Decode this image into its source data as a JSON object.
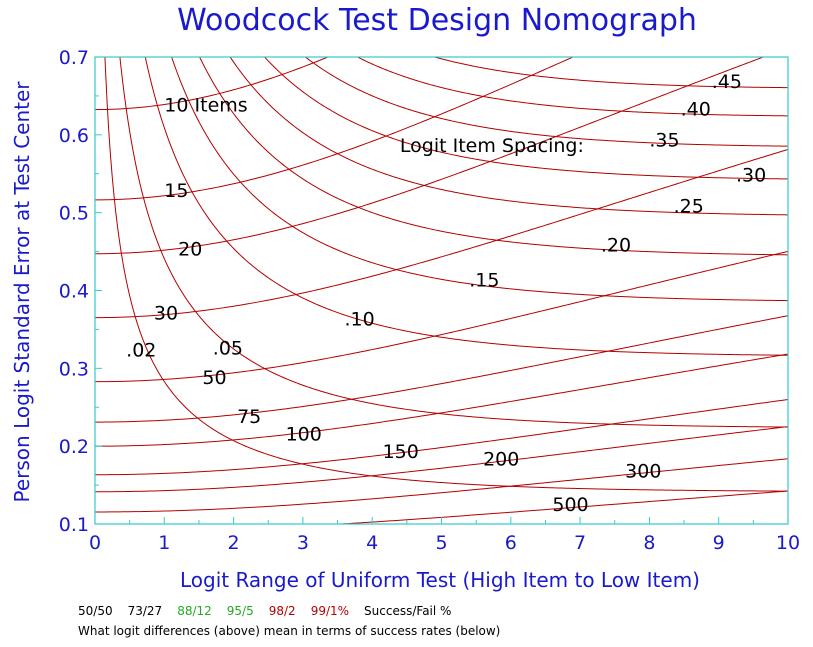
{
  "colors": {
    "frame": "#33cccc",
    "curves": "#b30000",
    "title": "#1a1acc",
    "labels": "#000000"
  },
  "chart_data": {
    "type": "line",
    "title": "Woodcock Test Design Nomograph",
    "xlabel": "Logit Range of Uniform Test (High Item to Low Item)",
    "ylabel": "Person Logit Standard Error at Test Center",
    "xlim": [
      0,
      10
    ],
    "ylim": [
      0.1,
      0.7
    ],
    "x_ticks": [
      "0",
      "1",
      "2",
      "3",
      "4",
      "5",
      "6",
      "7",
      "8",
      "9",
      "10"
    ],
    "y_ticks": [
      "0.1",
      "0.2",
      "0.3",
      "0.4",
      "0.5",
      "0.6",
      "0.7"
    ],
    "legend_title": "Logit Item Spacing:",
    "item_count_curves": [
      {
        "label": "10 Items",
        "n": 10,
        "label_x": 1.0,
        "label_y": 0.63
      },
      {
        "label": "15",
        "n": 15,
        "label_x": 1.0,
        "label_y": 0.52
      },
      {
        "label": "20",
        "n": 20,
        "label_x": 1.2,
        "label_y": 0.445
      },
      {
        "label": "30",
        "n": 30,
        "label_x": 0.85,
        "label_y": 0.363
      },
      {
        "label": "50",
        "n": 50,
        "label_x": 1.55,
        "label_y": 0.28
      },
      {
        "label": "75",
        "n": 75,
        "label_x": 2.05,
        "label_y": 0.23
      },
      {
        "label": "100",
        "n": 100,
        "label_x": 2.75,
        "label_y": 0.207
      },
      {
        "label": "150",
        "n": 150,
        "label_x": 4.15,
        "label_y": 0.185
      },
      {
        "label": "200",
        "n": 200,
        "label_x": 5.6,
        "label_y": 0.175
      },
      {
        "label": "300",
        "n": 300,
        "label_x": 7.65,
        "label_y": 0.16
      },
      {
        "label": "500",
        "n": 500,
        "label_x": 6.6,
        "label_y": 0.117
      }
    ],
    "spacing_curves": [
      {
        "label": ".02",
        "d": 0.02,
        "label_x": 0.45,
        "label_y": 0.315
      },
      {
        "label": ".05",
        "d": 0.05,
        "label_x": 1.7,
        "label_y": 0.318
      },
      {
        "label": ".10",
        "d": 0.1,
        "label_x": 3.6,
        "label_y": 0.355
      },
      {
        "label": ".15",
        "d": 0.15,
        "label_x": 5.4,
        "label_y": 0.405
      },
      {
        "label": ".20",
        "d": 0.2,
        "label_x": 7.3,
        "label_y": 0.45
      },
      {
        "label": ".25",
        "d": 0.25,
        "label_x": 8.35,
        "label_y": 0.5
      },
      {
        "label": ".30",
        "d": 0.3,
        "label_x": 9.25,
        "label_y": 0.54
      },
      {
        "label": ".35",
        "d": 0.35,
        "label_x": 8.0,
        "label_y": 0.585
      },
      {
        "label": ".40",
        "d": 0.4,
        "label_x": 8.45,
        "label_y": 0.625
      },
      {
        "label": ".45",
        "d": 0.45,
        "label_x": 8.9,
        "label_y": 0.66
      }
    ],
    "legend_label_x": 4.4,
    "legend_label_y": 0.578
  },
  "footer": {
    "success_rates": [
      {
        "text": "50/50",
        "color": "#000000"
      },
      {
        "text": "73/27",
        "color": "#000000"
      },
      {
        "text": "88/12",
        "color": "#22aa22"
      },
      {
        "text": "95/5",
        "color": "#22aa22"
      },
      {
        "text": "98/2",
        "color": "#b30000"
      },
      {
        "text": "99/1%",
        "color": "#b30000"
      },
      {
        "text": "Success/Fail %",
        "color": "#000000"
      }
    ],
    "note": "What logit differences (above) mean in terms of success rates (below)"
  }
}
